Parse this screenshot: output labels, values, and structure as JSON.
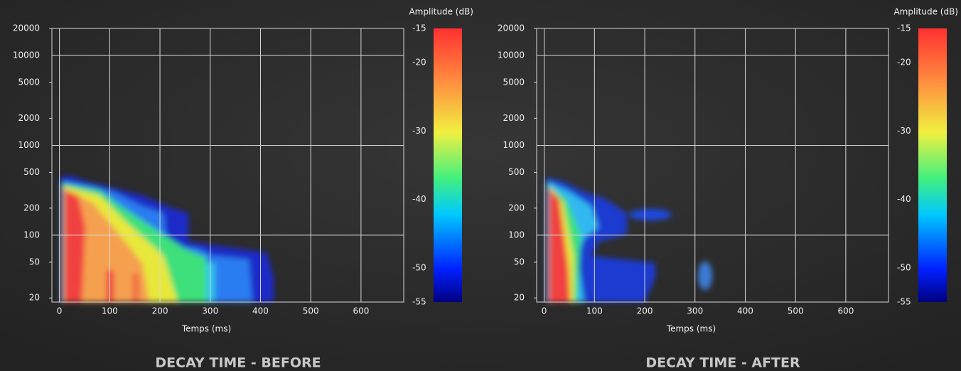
{
  "chart_data": [
    {
      "type": "heatmap",
      "title": "DECAY TIME - BEFORE",
      "x_label": "Temps (ms)",
      "colorbar_label": "Amplitude (dB)",
      "xlim": [
        -15,
        685
      ],
      "xticks": [
        0,
        100,
        200,
        300,
        400,
        500,
        600
      ],
      "y_scale": "log",
      "ylim": [
        18,
        20000
      ],
      "yticks": [
        20,
        50,
        100,
        200,
        500,
        1000,
        2000,
        5000,
        10000,
        20000
      ],
      "clim": [
        -55,
        -15
      ],
      "cticks": [
        -15,
        -20,
        -30,
        -40,
        -50,
        -55
      ],
      "colormap": "jet",
      "grid": true
    },
    {
      "type": "heatmap",
      "title": "DECAY TIME - AFTER",
      "x_label": "Temps (ms)",
      "colorbar_label": "Amplitude (dB)",
      "xlim": [
        -15,
        685
      ],
      "xticks": [
        0,
        100,
        200,
        300,
        400,
        500,
        600
      ],
      "y_scale": "log",
      "ylim": [
        18,
        20000
      ],
      "yticks": [
        20,
        50,
        100,
        200,
        500,
        1000,
        2000,
        5000,
        10000,
        20000
      ],
      "clim": [
        -55,
        -15
      ],
      "cticks": [
        -15,
        -20,
        -30,
        -40,
        -50,
        -55
      ],
      "colormap": "jet",
      "grid": true
    }
  ]
}
